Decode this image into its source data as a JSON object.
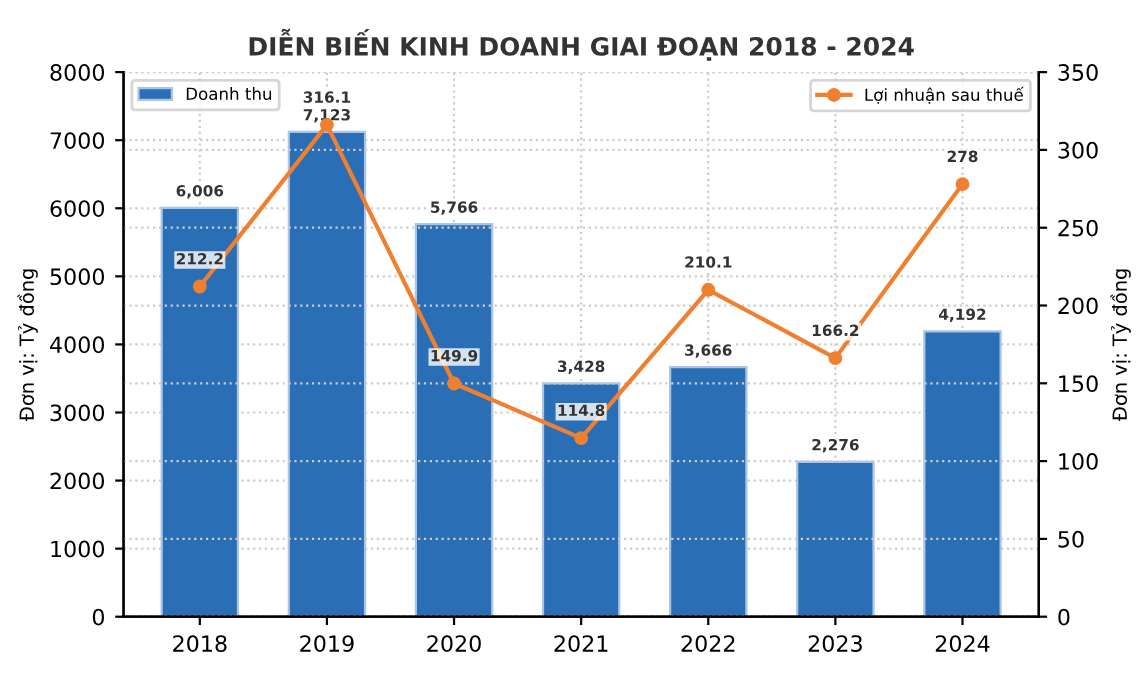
{
  "chart_data": {
    "type": "bar",
    "title": "DIỄN BIẾN KINH DOANH GIAI ĐOẠN 2018 - 2024",
    "categories": [
      "2018",
      "2019",
      "2020",
      "2021",
      "2022",
      "2023",
      "2024"
    ],
    "ylabel": "Đơn vị: Tỷ đồng",
    "y2label": "Đơn vị: Tỷ đồng",
    "series": [
      {
        "name": "Doanh thu",
        "color": "#2a6fb5",
        "values": [
          6006,
          7123,
          5766,
          3428,
          3666,
          2276,
          4192
        ],
        "value_labels": [
          "6,006",
          "7,123",
          "5,766",
          "3,428",
          "3,666",
          "2,276",
          "4,192"
        ]
      },
      {
        "name": "Lợi nhuận sau thuế",
        "type": "line",
        "axis": "y2",
        "color": "#f07f2f",
        "marker": "circle",
        "line_style": "solid",
        "values": [
          212.2,
          316.1,
          149.9,
          114.8,
          210.1,
          166.2,
          278
        ],
        "value_labels": [
          "212.2",
          "316.1",
          "149.9",
          "114.8",
          "210.1",
          "166.2",
          "278"
        ]
      }
    ],
    "ylim": [
      0,
      8000
    ],
    "yticks": [
      0,
      1000,
      2000,
      3000,
      4000,
      5000,
      6000,
      7000,
      8000
    ],
    "y2lim": [
      0,
      350
    ],
    "y2ticks": [
      0,
      50,
      100,
      150,
      200,
      250,
      300,
      350
    ],
    "grid": true,
    "legend": "top"
  }
}
